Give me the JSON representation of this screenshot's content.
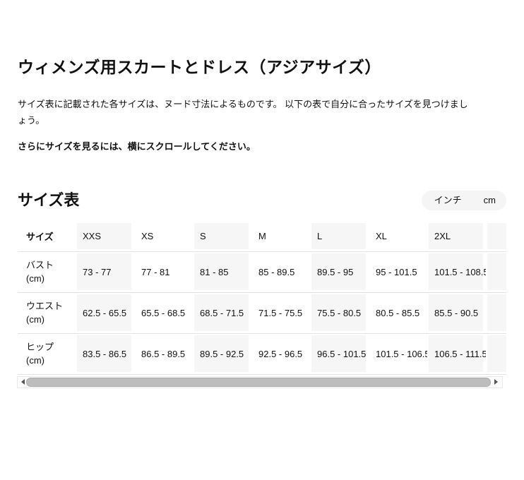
{
  "page": {
    "title": "ウィメンズ用スカートとドレス（アジアサイズ）",
    "intro": "サイズ表に記載された各サイズは、ヌード寸法によるものです。 以下の表で自分に合ったサイズを見つけましょう。",
    "scroll_hint": "さらにサイズを見るには、横にスクロールしてください。"
  },
  "size_chart": {
    "section_title": "サイズ表",
    "unit_toggle": {
      "inch_label": "インチ",
      "cm_label": "cm",
      "selected": "cm"
    },
    "table": {
      "corner_header": "サイズ",
      "columns": [
        "XXS",
        "XS",
        "S",
        "M",
        "L",
        "XL",
        "2XL"
      ],
      "rows": [
        {
          "label": "バスト",
          "unit": "(cm)",
          "values": [
            "73 - 77",
            "77 - 81",
            "81 - 85",
            "85 - 89.5",
            "89.5 - 95",
            "95 - 101.5",
            "101.5 - 108.5"
          ]
        },
        {
          "label": "ウエスト",
          "unit": "(cm)",
          "values": [
            "62.5 - 65.5",
            "65.5 - 68.5",
            "68.5 - 71.5",
            "71.5 - 75.5",
            "75.5 - 80.5",
            "80.5 - 85.5",
            "85.5 - 90.5"
          ]
        },
        {
          "label": "ヒップ",
          "unit": "(cm)",
          "values": [
            "83.5 - 86.5",
            "86.5 - 89.5",
            "89.5 - 92.5",
            "92.5 - 96.5",
            "96.5 - 101.5",
            "101.5 - 106.5",
            "106.5 - 111.5"
          ]
        }
      ]
    },
    "scrollbar": {
      "left_icon": "scroll-left-arrow-icon",
      "right_icon": "scroll-right-arrow-icon"
    }
  },
  "colors": {
    "text": "#111111",
    "column_band": "#f6f6f6",
    "row_border": "#e3e3e3",
    "toggle_bg": "#f5f5f5",
    "toggle_selected_bg": "#ffffff",
    "toggle_selected_border": "#cccccc",
    "scrollbar_thumb": "#bdbdbd"
  }
}
